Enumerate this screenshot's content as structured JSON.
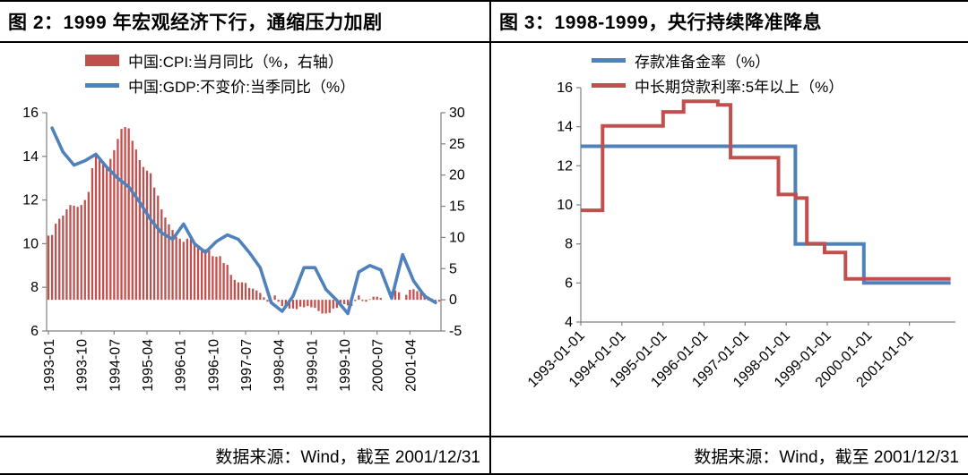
{
  "left_panel": {
    "title": "图 2：1999 年宏观经济下行，通缩压力加剧",
    "source": "数据来源：Wind，截至 2001/12/31"
  },
  "right_panel": {
    "title": "图 3：1998-1999，央行持续降准降息",
    "source": "数据来源：Wind，截至 2001/12/31"
  },
  "colors": {
    "red": "#C0504D",
    "blue": "#4F81BD",
    "axis": "#7f7f7f",
    "text": "#000000"
  },
  "chart_data": [
    {
      "type": "bar",
      "combo": "bar+line",
      "title": "图 2：1999 年宏观经济下行，通缩压力加剧",
      "x_monthly_start": "1993-01",
      "x_monthly_count": 108,
      "x_tick_labels": [
        "1993-01",
        "1993-10",
        "1994-07",
        "1995-04",
        "1996-01",
        "1996-10",
        "1997-07",
        "1998-04",
        "1999-01",
        "1999-10",
        "2000-07",
        "2001-04"
      ],
      "x_tick_month_index": [
        0,
        9,
        18,
        27,
        36,
        45,
        54,
        63,
        72,
        81,
        90,
        99
      ],
      "left_axis": {
        "min": 6,
        "max": 16,
        "ticks": [
          6,
          8,
          10,
          12,
          14,
          16
        ]
      },
      "right_axis": {
        "min": -5,
        "max": 30,
        "ticks": [
          -5,
          0,
          5,
          10,
          15,
          20,
          25,
          30
        ]
      },
      "grid": false,
      "legend_position": "top",
      "series": [
        {
          "name": "中国:CPI:当月同比（%，右轴）",
          "type": "bar",
          "axis": "right",
          "color": "#C0504D",
          "freq": "monthly",
          "values": [
            10.3,
            10.4,
            12.2,
            13.0,
            13.5,
            14.5,
            15.2,
            15.1,
            14.9,
            15.2,
            16.0,
            17.3,
            21.1,
            23.2,
            22.4,
            21.7,
            21.3,
            22.6,
            24.0,
            25.8,
            27.4,
            27.7,
            27.5,
            25.5,
            24.1,
            22.4,
            21.3,
            20.7,
            20.3,
            18.0,
            16.7,
            14.5,
            13.2,
            12.1,
            11.2,
            10.1,
            9.8,
            9.3,
            9.8,
            9.7,
            8.9,
            8.6,
            8.3,
            8.1,
            7.9,
            7.0,
            6.9,
            7.0,
            5.9,
            5.6,
            4.0,
            3.2,
            2.8,
            2.8,
            2.7,
            1.9,
            1.8,
            1.5,
            1.1,
            0.4,
            -0.3,
            -0.1,
            0.7,
            -0.3,
            -1.0,
            -1.3,
            -1.4,
            -1.4,
            -1.5,
            -1.1,
            -1.2,
            -1.0,
            -1.2,
            -1.3,
            -1.8,
            -2.2,
            -2.2,
            -2.1,
            -1.4,
            -1.3,
            -0.8,
            -0.7,
            -0.9,
            -1.0,
            -0.2,
            0.7,
            -0.2,
            -0.3,
            0.1,
            0.5,
            0.5,
            0.3,
            0.0,
            0.0,
            1.3,
            1.5,
            1.2,
            0.0,
            0.8,
            1.6,
            1.7,
            1.4,
            1.5,
            1.0,
            -0.1,
            0.2,
            -0.3,
            -0.3
          ]
        },
        {
          "name": "中国:GDP:不变价:当季同比（%）",
          "type": "line",
          "axis": "left",
          "color": "#4F81BD",
          "freq": "quarterly",
          "values": [
            15.3,
            14.2,
            13.6,
            13.8,
            14.1,
            13.5,
            13.0,
            12.6,
            11.9,
            11.1,
            10.5,
            10.2,
            10.9,
            10.0,
            9.6,
            10.1,
            10.4,
            10.2,
            9.6,
            8.9,
            7.3,
            6.9,
            7.6,
            8.9,
            8.9,
            7.9,
            7.4,
            6.8,
            8.7,
            9.0,
            8.8,
            7.5,
            9.5,
            8.3,
            7.6,
            7.3
          ]
        }
      ]
    },
    {
      "type": "line",
      "subtype": "step",
      "title": "图 3：1998-1999，央行持续降准降息",
      "x_axis": {
        "start": "1993-01-01",
        "end": "2002-01-01",
        "ticks": [
          "1993-01-01",
          "1994-01-01",
          "1995-01-01",
          "1996-01-01",
          "1997-01-01",
          "1998-01-01",
          "1999-01-01",
          "2000-01-01",
          "2001-01-01"
        ]
      },
      "y_axis": {
        "min": 4,
        "max": 16,
        "ticks": [
          4,
          6,
          8,
          10,
          12,
          14,
          16
        ]
      },
      "grid": false,
      "legend_position": "top",
      "series": [
        {
          "name": "存款准备金率（%）",
          "color": "#4F81BD",
          "points": [
            [
              "1993-01-01",
              13
            ],
            [
              "1998-03-21",
              8
            ],
            [
              "1999-11-21",
              6
            ]
          ]
        },
        {
          "name": "中长期贷款利率:5年以上（%）",
          "color": "#C0504D",
          "points": [
            [
              "1993-01-01",
              9.72
            ],
            [
              "1993-07-11",
              14.04
            ],
            [
              "1995-01-01",
              14.76
            ],
            [
              "1995-07-01",
              15.3
            ],
            [
              "1996-05-01",
              15.12
            ],
            [
              "1996-08-23",
              12.42
            ],
            [
              "1997-10-23",
              10.53
            ],
            [
              "1998-03-25",
              10.35
            ],
            [
              "1998-07-01",
              8.01
            ],
            [
              "1998-12-07",
              7.56
            ],
            [
              "1999-06-10",
              6.21
            ]
          ]
        }
      ]
    }
  ]
}
